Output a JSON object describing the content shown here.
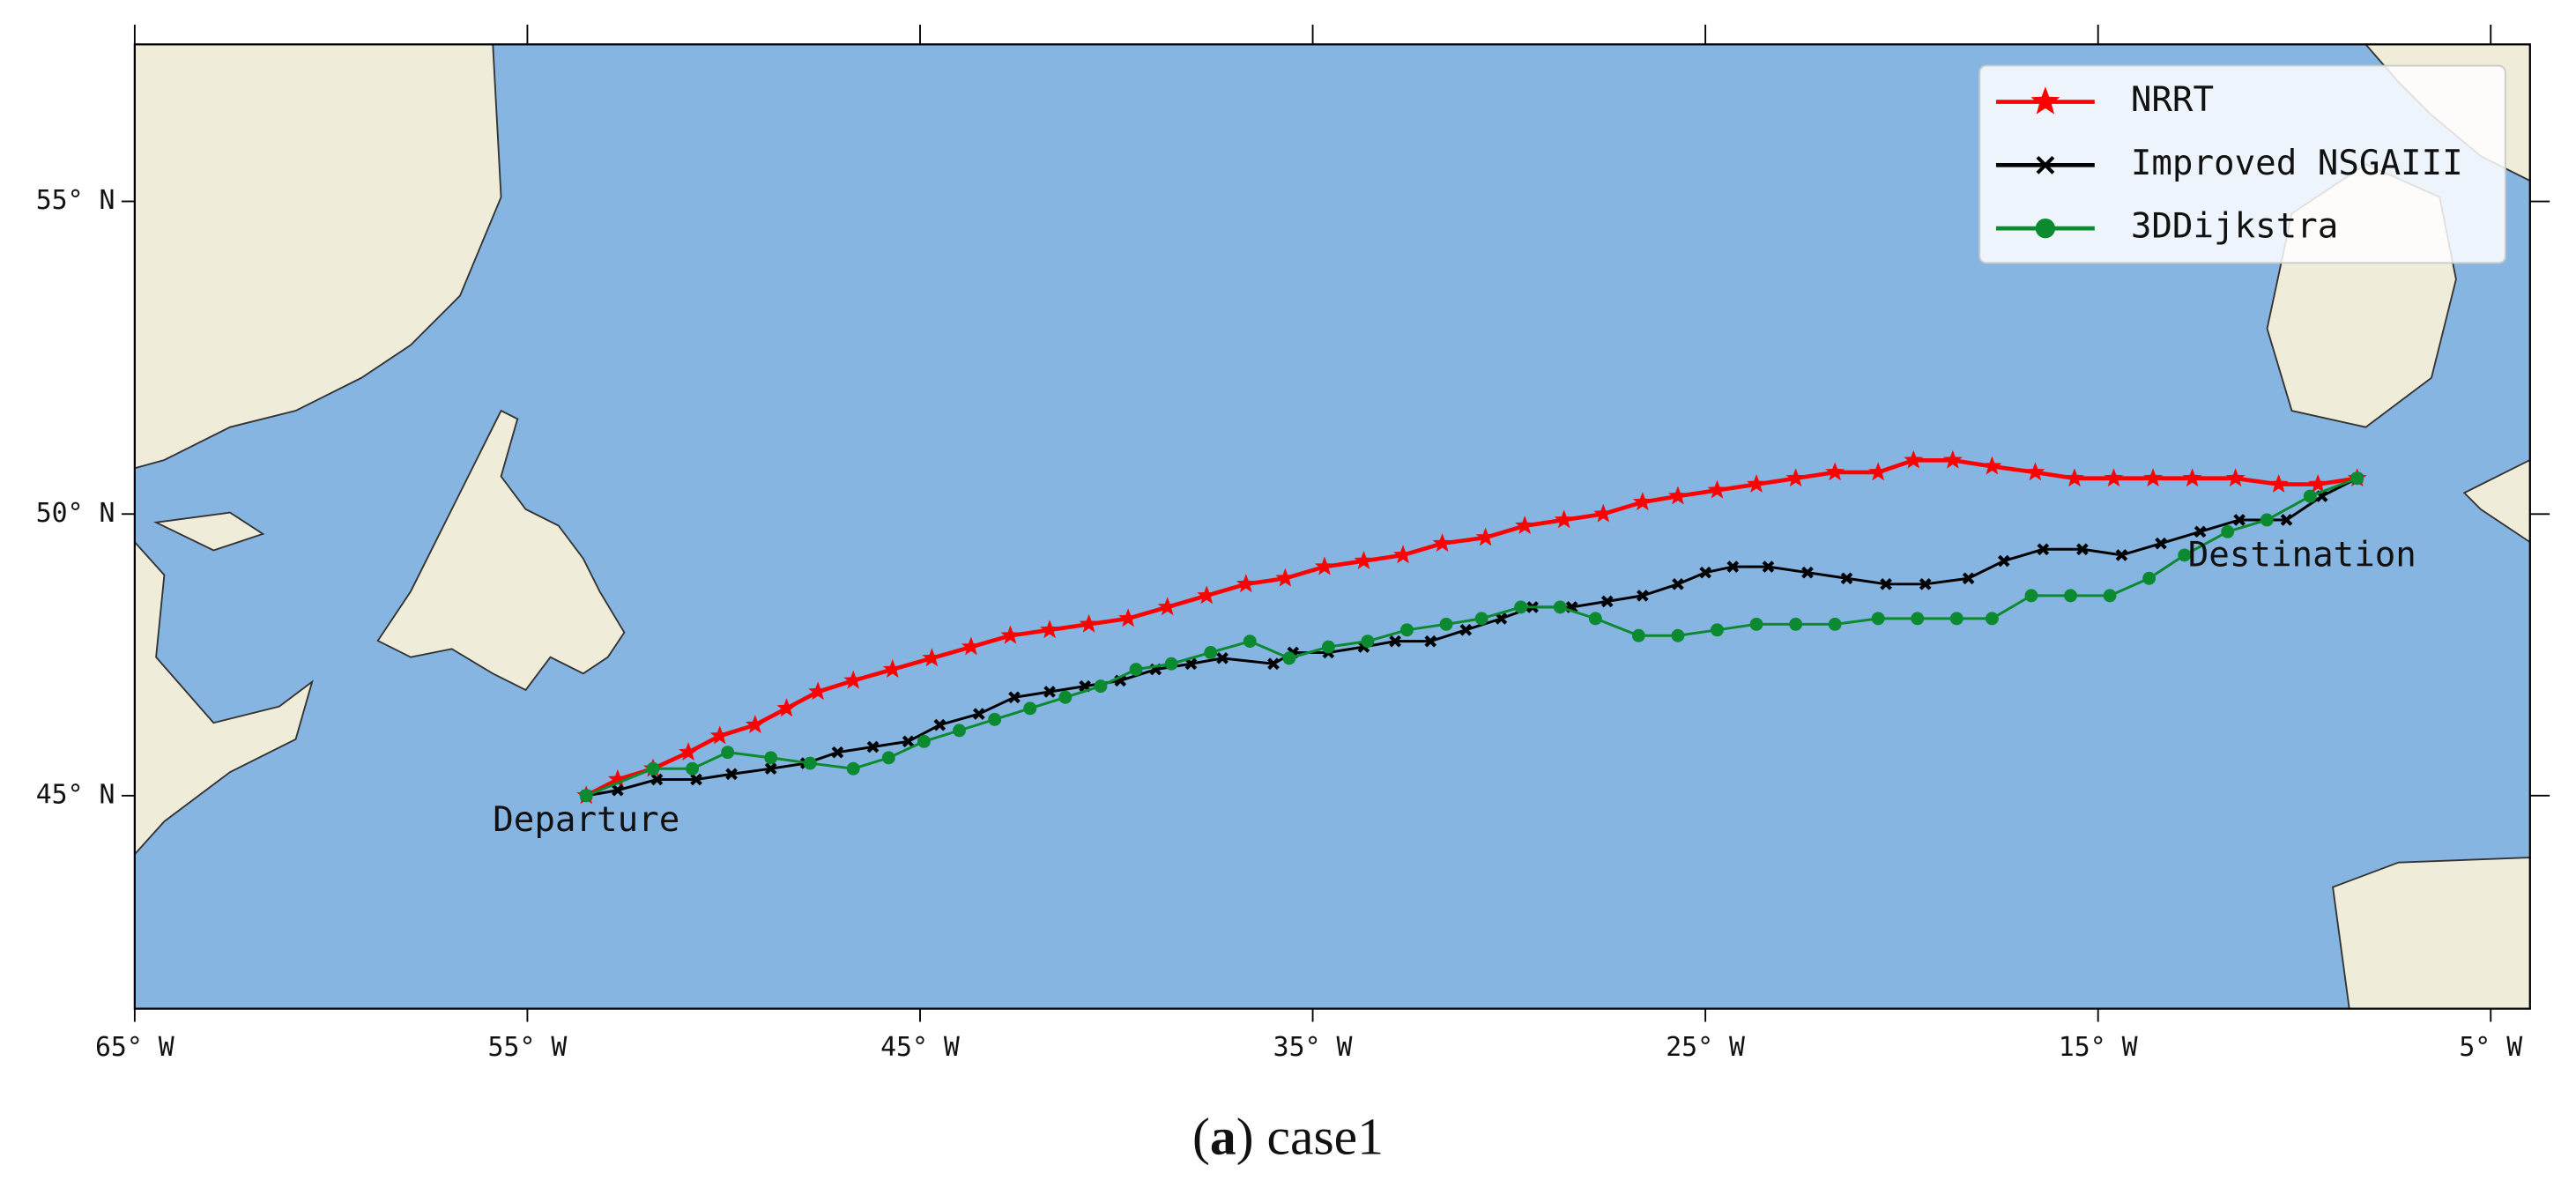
{
  "chart_data": {
    "type": "line",
    "projection": "mercator",
    "xlim": [
      -65,
      -4.0
    ],
    "ylim": [
      40.9,
      57.3
    ],
    "xticks": [
      {
        "value": -65,
        "label": "65° W"
      },
      {
        "value": -55,
        "label": "55° W"
      },
      {
        "value": -45,
        "label": "45° W"
      },
      {
        "value": -35,
        "label": "35° W"
      },
      {
        "value": -25,
        "label": "25° W"
      },
      {
        "value": -15,
        "label": "15° W"
      },
      {
        "value": -5,
        "label": "5° W"
      }
    ],
    "yticks": [
      {
        "value": 45,
        "label": "45° N"
      },
      {
        "value": 50,
        "label": "50° N"
      },
      {
        "value": 55,
        "label": "55° N"
      }
    ],
    "legend": "upper right",
    "annotations": [
      {
        "text": "Departure",
        "x": -53.5,
        "y": 45.0
      },
      {
        "text": "Destination",
        "x": -8.4,
        "y": 50.6
      }
    ],
    "caption": [
      "(",
      "a",
      ") case1"
    ],
    "series": [
      {
        "name": "NRRT",
        "color": "#ff0000",
        "marker": "star",
        "x": [
          -53.5,
          -52.7,
          -51.8,
          -50.9,
          -50.1,
          -49.2,
          -48.4,
          -47.6,
          -46.7,
          -45.7,
          -44.7,
          -43.7,
          -42.7,
          -41.7,
          -40.7,
          -39.7,
          -38.7,
          -37.7,
          -36.7,
          -35.7,
          -34.7,
          -33.7,
          -32.7,
          -31.7,
          -30.6,
          -29.6,
          -28.6,
          -27.6,
          -26.6,
          -25.7,
          -24.7,
          -23.7,
          -22.7,
          -21.7,
          -20.6,
          -19.7,
          -18.7,
          -17.7,
          -16.6,
          -15.6,
          -14.6,
          -13.6,
          -12.6,
          -11.5,
          -10.4,
          -9.4,
          -8.4
        ],
        "values": [
          45.0,
          45.3,
          45.5,
          45.8,
          46.1,
          46.3,
          46.6,
          46.9,
          47.1,
          47.3,
          47.5,
          47.7,
          47.9,
          48.0,
          48.1,
          48.2,
          48.4,
          48.6,
          48.8,
          48.9,
          49.1,
          49.2,
          49.3,
          49.5,
          49.6,
          49.8,
          49.9,
          50.0,
          50.2,
          50.3,
          50.4,
          50.5,
          50.6,
          50.7,
          50.7,
          50.9,
          50.9,
          50.8,
          50.7,
          50.6,
          50.6,
          50.6,
          50.6,
          50.6,
          50.5,
          50.5,
          50.6
        ]
      },
      {
        "name": "Improved NSGAIII",
        "color": "#000000",
        "marker": "x",
        "x": [
          -53.5,
          -52.7,
          -51.7,
          -50.7,
          -49.8,
          -48.8,
          -47.9,
          -47.1,
          -46.2,
          -45.3,
          -44.5,
          -43.5,
          -42.6,
          -41.7,
          -40.8,
          -39.9,
          -39.0,
          -38.1,
          -37.3,
          -36.0,
          -35.5,
          -34.6,
          -33.7,
          -32.9,
          -32.0,
          -31.1,
          -30.2,
          -29.4,
          -28.4,
          -27.5,
          -26.6,
          -25.7,
          -25.0,
          -24.3,
          -23.4,
          -22.4,
          -21.4,
          -20.4,
          -19.4,
          -18.3,
          -17.4,
          -16.4,
          -15.4,
          -14.4,
          -13.4,
          -12.4,
          -11.4,
          -10.2,
          -9.3,
          -8.4
        ],
        "values": [
          45.0,
          45.1,
          45.3,
          45.3,
          45.4,
          45.5,
          45.6,
          45.8,
          45.9,
          46.0,
          46.3,
          46.5,
          46.8,
          46.9,
          47.0,
          47.1,
          47.3,
          47.4,
          47.5,
          47.4,
          47.6,
          47.6,
          47.7,
          47.8,
          47.8,
          48.0,
          48.2,
          48.4,
          48.4,
          48.5,
          48.6,
          48.8,
          49.0,
          49.1,
          49.1,
          49.0,
          48.9,
          48.8,
          48.8,
          48.9,
          49.2,
          49.4,
          49.4,
          49.3,
          49.5,
          49.7,
          49.9,
          49.9,
          50.3,
          50.6
        ]
      },
      {
        "name": "3DDijkstra",
        "color": "#0b8a2f",
        "marker": "circle",
        "x": [
          -53.5,
          -51.8,
          -50.8,
          -49.9,
          -48.8,
          -47.8,
          -46.7,
          -45.8,
          -44.9,
          -44.0,
          -43.1,
          -42.2,
          -41.3,
          -40.4,
          -39.5,
          -38.6,
          -37.6,
          -36.6,
          -35.6,
          -34.6,
          -33.6,
          -32.6,
          -31.6,
          -30.7,
          -29.7,
          -28.7,
          -27.8,
          -26.7,
          -25.7,
          -24.7,
          -23.7,
          -22.7,
          -21.7,
          -20.6,
          -19.6,
          -18.6,
          -17.7,
          -16.7,
          -15.7,
          -14.7,
          -13.7,
          -12.8,
          -11.7,
          -10.7,
          -9.6,
          -8.4
        ],
        "values": [
          45.0,
          45.5,
          45.5,
          45.8,
          45.7,
          45.6,
          45.5,
          45.7,
          46.0,
          46.2,
          46.4,
          46.6,
          46.8,
          47.0,
          47.3,
          47.4,
          47.6,
          47.8,
          47.5,
          47.7,
          47.8,
          48.0,
          48.1,
          48.2,
          48.4,
          48.4,
          48.2,
          47.9,
          47.9,
          48.0,
          48.1,
          48.1,
          48.1,
          48.2,
          48.2,
          48.2,
          48.2,
          48.6,
          48.6,
          48.6,
          48.9,
          49.3,
          49.7,
          49.9,
          50.3,
          50.6
        ]
      }
    ]
  }
}
